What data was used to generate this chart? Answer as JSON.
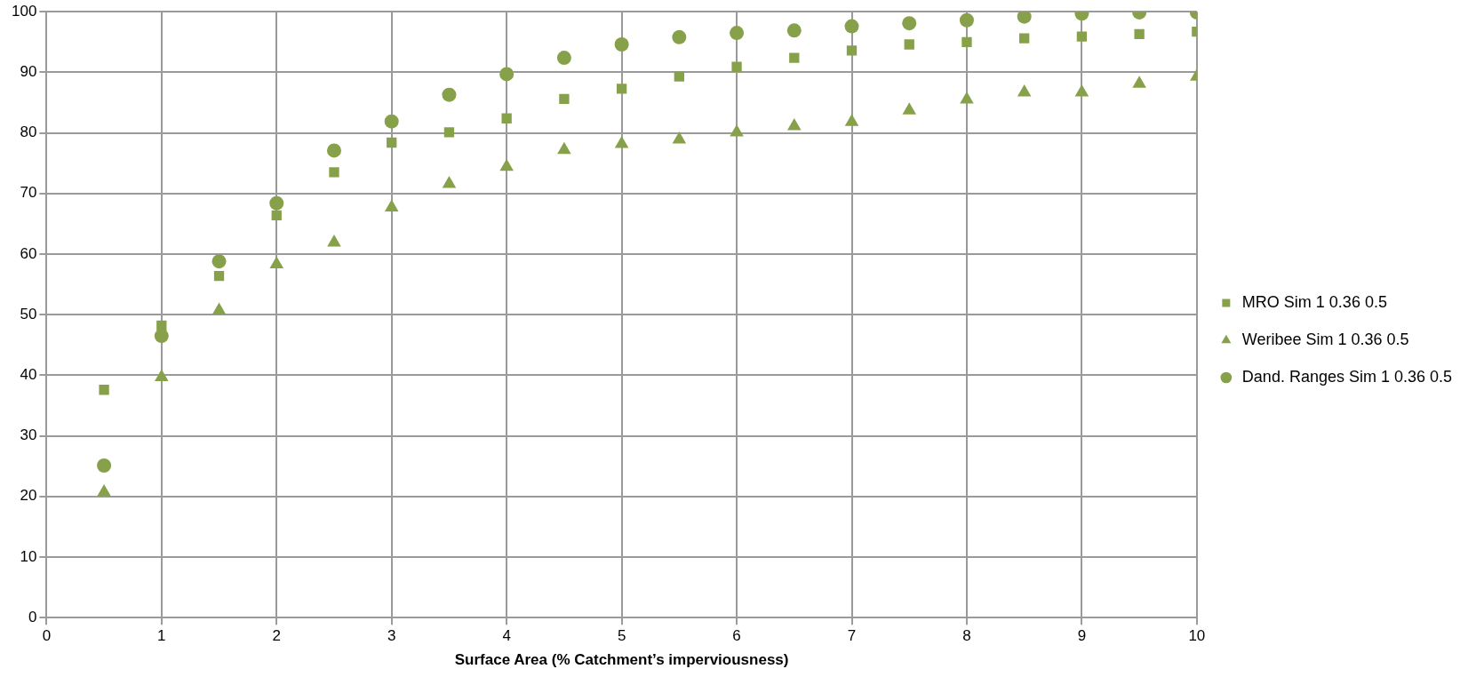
{
  "chart_data": {
    "type": "scatter",
    "xlabel": "Surface Area (% Catchment’s imperviousness)",
    "x": [
      0.5,
      1,
      1.5,
      2,
      2.5,
      3,
      3.5,
      4,
      4.5,
      5,
      5.5,
      6,
      6.5,
      7,
      7.5,
      8,
      8.5,
      9,
      9.5,
      10
    ],
    "series": [
      {
        "name": "MRO Sim 1 0.36 0.5",
        "color": "#87a04a",
        "marker": "square",
        "values": [
          37.6,
          48.2,
          56.4,
          66.4,
          73.5,
          78.4,
          80.1,
          82.4,
          85.6,
          87.3,
          89.3,
          90.9,
          92.4,
          93.6,
          94.6,
          95.0,
          95.6,
          95.9,
          96.3,
          96.7
        ]
      },
      {
        "name": "Weribee Sim 1 0.36 0.5",
        "color": "#87a04a",
        "marker": "triangle",
        "values": [
          20.7,
          39.7,
          50.7,
          58.3,
          61.9,
          67.7,
          71.6,
          74.4,
          77.2,
          78.2,
          78.9,
          80.1,
          81.1,
          81.8,
          83.7,
          85.5,
          86.7,
          86.7,
          88.1,
          89.3
        ]
      },
      {
        "name": "Dand. Ranges Sim 1 0.36 0.5",
        "color": "#87a04a",
        "marker": "circle",
        "values": [
          25.1,
          46.5,
          58.8,
          68.4,
          77.1,
          81.9,
          86.3,
          89.7,
          92.4,
          94.6,
          95.8,
          96.5,
          96.9,
          97.6,
          98.1,
          98.6,
          99.2,
          99.7,
          99.9,
          99.9
        ]
      }
    ],
    "xlim": [
      0,
      10
    ],
    "xticks": [
      0,
      1,
      2,
      3,
      4,
      5,
      6,
      7,
      8,
      9,
      10
    ],
    "ylim": [
      0,
      100
    ],
    "yticks": [
      0,
      10,
      20,
      30,
      40,
      50,
      60,
      70,
      80,
      90,
      100
    ],
    "grid": true,
    "legend": "right"
  }
}
